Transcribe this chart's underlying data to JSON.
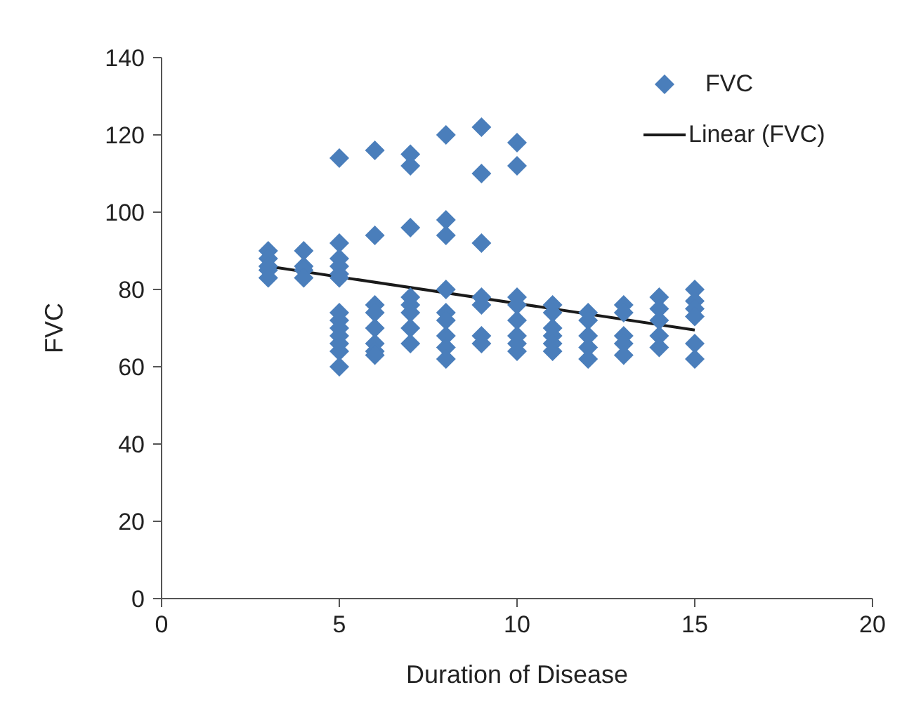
{
  "chart_data": {
    "type": "scatter",
    "xlabel": "Duration of Disease",
    "ylabel": "FVC",
    "xlim": [
      0,
      20
    ],
    "xticks": [
      0,
      5,
      10,
      15,
      20
    ],
    "ylim": [
      0,
      140
    ],
    "yticks": [
      0,
      20,
      40,
      60,
      80,
      100,
      120,
      140
    ],
    "grid": false,
    "legend": "top right",
    "series": [
      {
        "name": "FVC",
        "color": "#4a7ebb",
        "marker": "diamond",
        "x": [
          3,
          3,
          3,
          3,
          3,
          4,
          4,
          4,
          4,
          5,
          5,
          5,
          5,
          5,
          5,
          5,
          5,
          5,
          5,
          5,
          5,
          5,
          6,
          6,
          6,
          6,
          6,
          6,
          6,
          6,
          7,
          7,
          7,
          7,
          7,
          7,
          7,
          7,
          8,
          8,
          8,
          8,
          8,
          8,
          8,
          8,
          8,
          9,
          9,
          9,
          9,
          9,
          9,
          9,
          10,
          10,
          10,
          10,
          10,
          10,
          10,
          10,
          11,
          11,
          11,
          11,
          11,
          11,
          12,
          12,
          12,
          12,
          12,
          13,
          13,
          13,
          13,
          13,
          14,
          14,
          14,
          14,
          14,
          15,
          15,
          15,
          15,
          15,
          15
        ],
        "values": [
          90,
          88,
          86,
          85,
          83,
          90,
          86,
          85,
          83,
          114,
          92,
          88,
          86,
          84,
          83,
          74,
          72,
          70,
          68,
          66,
          64,
          60,
          116,
          94,
          76,
          74,
          70,
          66,
          64,
          63,
          115,
          112,
          96,
          78,
          76,
          74,
          70,
          66,
          120,
          98,
          94,
          80,
          74,
          72,
          68,
          65,
          62,
          122,
          110,
          92,
          78,
          76,
          68,
          66,
          118,
          112,
          78,
          76,
          72,
          68,
          66,
          64,
          76,
          74,
          70,
          68,
          66,
          64,
          74,
          72,
          68,
          65,
          62,
          76,
          74,
          68,
          66,
          63,
          78,
          75,
          72,
          68,
          65,
          80,
          77,
          75,
          73,
          66,
          62
        ]
      },
      {
        "name": "Linear (FVC)",
        "type": "line",
        "color": "#1a1a1a",
        "marker": "none",
        "line_style": "solid",
        "x": [
          3,
          15
        ],
        "values": [
          86,
          69.5
        ]
      }
    ]
  }
}
